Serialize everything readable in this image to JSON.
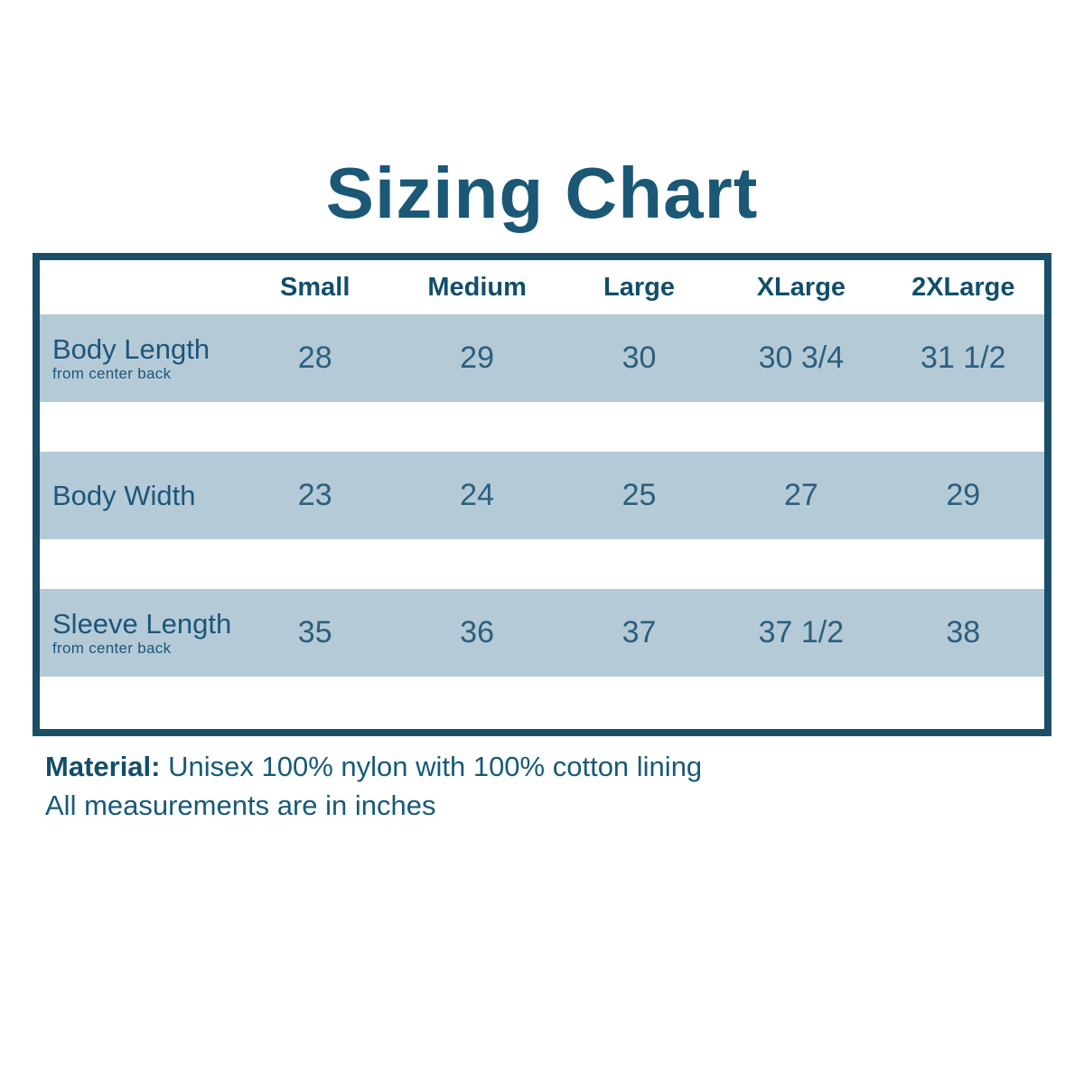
{
  "page": {
    "title": "Sizing Chart"
  },
  "colors": {
    "title_text": "#1a5876",
    "table_border": "#1b4f68",
    "row_background": "#b5cad7",
    "header_text": "#124e6b",
    "value_text": "#2b5f7c"
  },
  "chart_data": {
    "type": "table",
    "title": "Sizing Chart",
    "columns": [
      "Small",
      "Medium",
      "Large",
      "XLarge",
      "2XLarge"
    ],
    "rows": [
      {
        "label": "Body Length",
        "sublabel": "from center back",
        "values": [
          "28",
          "29",
          "30",
          "30 3/4",
          "31 1/2"
        ]
      },
      {
        "label": "Body Width",
        "sublabel": "",
        "values": [
          "23",
          "24",
          "25",
          "27",
          "29"
        ]
      },
      {
        "label": "Sleeve Length",
        "sublabel": "from center back",
        "values": [
          "35",
          "36",
          "37",
          "37 1/2",
          "38"
        ]
      }
    ],
    "layout_hints": {
      "banded_rows": true,
      "band_color": "#b5cad7",
      "gap_color": "#ffffff",
      "border": "8px solid dark teal"
    }
  },
  "footer": {
    "material_label": "Material:",
    "material_value": " Unisex 100% nylon with 100% cotton lining",
    "note": "All measurements are in inches"
  }
}
